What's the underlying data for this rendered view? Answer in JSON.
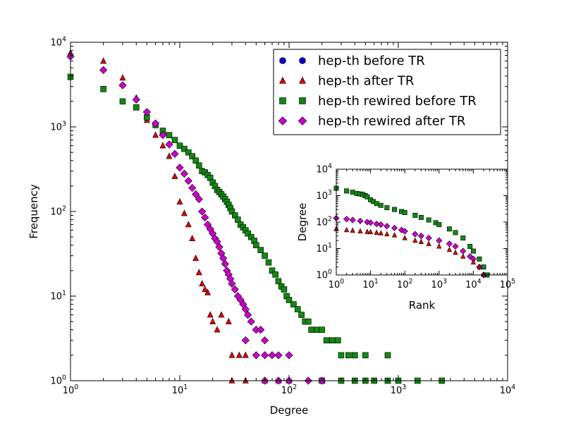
{
  "chart_data": [
    {
      "type": "scatter",
      "scale": "log-log",
      "xlabel": "Degree",
      "ylabel": "Frequency",
      "xlim": [
        1,
        10000
      ],
      "ylim": [
        1,
        10000
      ],
      "x_tick_labels": [
        {
          "base": "10",
          "exp": "0",
          "value": 1
        },
        {
          "base": "10",
          "exp": "1",
          "value": 10
        },
        {
          "base": "10",
          "exp": "2",
          "value": 100
        },
        {
          "base": "10",
          "exp": "3",
          "value": 1000
        },
        {
          "base": "10",
          "exp": "4",
          "value": 10000
        }
      ],
      "y_tick_labels": [
        {
          "base": "10",
          "exp": "0",
          "value": 1
        },
        {
          "base": "10",
          "exp": "1",
          "value": 10
        },
        {
          "base": "10",
          "exp": "2",
          "value": 100
        },
        {
          "base": "10",
          "exp": "3",
          "value": 1000
        },
        {
          "base": "10",
          "exp": "4",
          "value": 10000
        }
      ],
      "legend_position": "top-right",
      "series": [
        {
          "name": "hep-th before TR",
          "marker": "circle",
          "color": "#0000cc",
          "points": []
        },
        {
          "name": "hep-th after TR",
          "marker": "triangle",
          "color": "#dd0000",
          "points": [
            [
              1,
              7500
            ],
            [
              2,
              6000
            ],
            [
              3,
              3800
            ],
            [
              4,
              2200
            ],
            [
              5,
              1200
            ],
            [
              6,
              800
            ],
            [
              7,
              600
            ],
            [
              8,
              450
            ],
            [
              9,
              260
            ],
            [
              10,
              130
            ],
            [
              11,
              95
            ],
            [
              12,
              70
            ],
            [
              13,
              48
            ],
            [
              14,
              28
            ],
            [
              15,
              19
            ],
            [
              16,
              14
            ],
            [
              17,
              12
            ],
            [
              18,
              11
            ],
            [
              19,
              6
            ],
            [
              20,
              5
            ],
            [
              22,
              4
            ],
            [
              24,
              6
            ],
            [
              28,
              5
            ],
            [
              30,
              2
            ],
            [
              35,
              2
            ],
            [
              40,
              2
            ],
            [
              30,
              1
            ],
            [
              40,
              1
            ],
            [
              60,
              1
            ],
            [
              80,
              1
            ],
            [
              100,
              1
            ]
          ]
        },
        {
          "name": "hep-th rewired before TR",
          "marker": "square",
          "color": "#118811",
          "points": [
            [
              1,
              3900
            ],
            [
              2,
              2800
            ],
            [
              3,
              2000
            ],
            [
              4,
              1700
            ],
            [
              5,
              1300
            ],
            [
              6,
              1050
            ],
            [
              7,
              900
            ],
            [
              8,
              800
            ],
            [
              9,
              700
            ],
            [
              10,
              600
            ],
            [
              11,
              550
            ],
            [
              12,
              500
            ],
            [
              13,
              450
            ],
            [
              14,
              400
            ],
            [
              15,
              350
            ],
            [
              16,
              300
            ],
            [
              17,
              290
            ],
            [
              18,
              270
            ],
            [
              19,
              250
            ],
            [
              20,
              220
            ],
            [
              21,
              200
            ],
            [
              22,
              180
            ],
            [
              23,
              170
            ],
            [
              24,
              160
            ],
            [
              25,
              150
            ],
            [
              26,
              140
            ],
            [
              27,
              130
            ],
            [
              28,
              120
            ],
            [
              29,
              110
            ],
            [
              30,
              100
            ],
            [
              32,
              90
            ],
            [
              34,
              80
            ],
            [
              36,
              70
            ],
            [
              38,
              65
            ],
            [
              40,
              60
            ],
            [
              42,
              55
            ],
            [
              45,
              50
            ],
            [
              48,
              45
            ],
            [
              50,
              40
            ],
            [
              55,
              35
            ],
            [
              60,
              30
            ],
            [
              65,
              25
            ],
            [
              70,
              20
            ],
            [
              75,
              18
            ],
            [
              80,
              15
            ],
            [
              85,
              13
            ],
            [
              90,
              12
            ],
            [
              95,
              10
            ],
            [
              100,
              9
            ],
            [
              110,
              8
            ],
            [
              120,
              7
            ],
            [
              130,
              6
            ],
            [
              140,
              5
            ],
            [
              150,
              5
            ],
            [
              160,
              4
            ],
            [
              180,
              4
            ],
            [
              200,
              4
            ],
            [
              220,
              3
            ],
            [
              250,
              3
            ],
            [
              280,
              3
            ],
            [
              300,
              2
            ],
            [
              350,
              2
            ],
            [
              400,
              2
            ],
            [
              500,
              2
            ],
            [
              800,
              2
            ],
            [
              200,
              1
            ],
            [
              300,
              1
            ],
            [
              400,
              1
            ],
            [
              500,
              1
            ],
            [
              600,
              1
            ],
            [
              800,
              1
            ],
            [
              1000,
              1
            ],
            [
              1500,
              1
            ],
            [
              2500,
              1
            ]
          ]
        },
        {
          "name": "hep-th rewired after TR",
          "marker": "diamond",
          "color": "#cc00cc",
          "points": [
            [
              1,
              6800
            ],
            [
              2,
              4700
            ],
            [
              3,
              3100
            ],
            [
              4,
              2100
            ],
            [
              5,
              1500
            ],
            [
              6,
              1100
            ],
            [
              7,
              800
            ],
            [
              8,
              620
            ],
            [
              9,
              480
            ],
            [
              10,
              330
            ],
            [
              11,
              280
            ],
            [
              12,
              230
            ],
            [
              13,
              190
            ],
            [
              14,
              160
            ],
            [
              15,
              140
            ],
            [
              16,
              100
            ],
            [
              17,
              85
            ],
            [
              18,
              70
            ],
            [
              19,
              62
            ],
            [
              20,
              55
            ],
            [
              21,
              48
            ],
            [
              22,
              44
            ],
            [
              23,
              38
            ],
            [
              24,
              32
            ],
            [
              25,
              28
            ],
            [
              26,
              24
            ],
            [
              27,
              20
            ],
            [
              28,
              18
            ],
            [
              29,
              16
            ],
            [
              30,
              14
            ],
            [
              32,
              12
            ],
            [
              34,
              10
            ],
            [
              36,
              9
            ],
            [
              38,
              8
            ],
            [
              40,
              7
            ],
            [
              42,
              6
            ],
            [
              45,
              5
            ],
            [
              50,
              4
            ],
            [
              55,
              4
            ],
            [
              60,
              3
            ],
            [
              40,
              3
            ],
            [
              50,
              2
            ],
            [
              60,
              2
            ],
            [
              70,
              2
            ],
            [
              80,
              2
            ],
            [
              100,
              2
            ],
            [
              60,
              1
            ],
            [
              80,
              1
            ],
            [
              100,
              1
            ],
            [
              150,
              1
            ],
            [
              200,
              1
            ]
          ]
        }
      ]
    },
    {
      "type": "scatter",
      "scale": "log-log",
      "xlabel": "Rank",
      "ylabel": "Degree",
      "xlim": [
        1,
        100000
      ],
      "ylim": [
        1,
        10000
      ],
      "x_tick_labels": [
        {
          "base": "10",
          "exp": "0",
          "value": 1
        },
        {
          "base": "10",
          "exp": "1",
          "value": 10
        },
        {
          "base": "10",
          "exp": "2",
          "value": 100
        },
        {
          "base": "10",
          "exp": "3",
          "value": 1000
        },
        {
          "base": "10",
          "exp": "4",
          "value": 10000
        },
        {
          "base": "10",
          "exp": "5",
          "value": 100000
        }
      ],
      "y_tick_labels": [
        {
          "base": "10",
          "exp": "0",
          "value": 1
        },
        {
          "base": "10",
          "exp": "1",
          "value": 10
        },
        {
          "base": "10",
          "exp": "2",
          "value": 100
        },
        {
          "base": "10",
          "exp": "3",
          "value": 1000
        },
        {
          "base": "10",
          "exp": "4",
          "value": 10000
        }
      ],
      "series": [
        {
          "marker": "square",
          "color": "#118811",
          "points": [
            [
              1,
              1900
            ],
            [
              2,
              1500
            ],
            [
              3,
              1350
            ],
            [
              4,
              1200
            ],
            [
              5,
              1150
            ],
            [
              6,
              1100
            ],
            [
              7,
              1000
            ],
            [
              8,
              900
            ],
            [
              10,
              700
            ],
            [
              12,
              600
            ],
            [
              15,
              500
            ],
            [
              20,
              430
            ],
            [
              30,
              350
            ],
            [
              50,
              300
            ],
            [
              80,
              250
            ],
            [
              100,
              230
            ],
            [
              200,
              180
            ],
            [
              300,
              150
            ],
            [
              500,
              120
            ],
            [
              800,
              95
            ],
            [
              1000,
              80
            ],
            [
              2000,
              55
            ],
            [
              3000,
              40
            ],
            [
              5000,
              25
            ],
            [
              8000,
              12
            ],
            [
              10000,
              8
            ],
            [
              15000,
              4
            ],
            [
              20000,
              2
            ],
            [
              25000,
              1
            ]
          ]
        },
        {
          "marker": "diamond",
          "color": "#cc00cc",
          "points": [
            [
              1,
              140
            ],
            [
              2,
              130
            ],
            [
              3,
              120
            ],
            [
              5,
              110
            ],
            [
              8,
              100
            ],
            [
              10,
              95
            ],
            [
              15,
              85
            ],
            [
              20,
              80
            ],
            [
              30,
              70
            ],
            [
              50,
              60
            ],
            [
              80,
              50
            ],
            [
              100,
              45
            ],
            [
              200,
              35
            ],
            [
              300,
              30
            ],
            [
              500,
              25
            ],
            [
              1000,
              20
            ],
            [
              2000,
              15
            ],
            [
              3000,
              12
            ],
            [
              5000,
              8
            ],
            [
              8000,
              5
            ],
            [
              10000,
              4
            ],
            [
              15000,
              2
            ],
            [
              20000,
              1
            ]
          ]
        },
        {
          "marker": "triangle",
          "color": "#dd0000",
          "points": [
            [
              1,
              55
            ],
            [
              2,
              50
            ],
            [
              3,
              48
            ],
            [
              5,
              45
            ],
            [
              8,
              43
            ],
            [
              10,
              42
            ],
            [
              15,
              40
            ],
            [
              20,
              38
            ],
            [
              30,
              35
            ],
            [
              50,
              32
            ],
            [
              100,
              25
            ],
            [
              200,
              20
            ],
            [
              300,
              18
            ],
            [
              500,
              15
            ],
            [
              1000,
              12
            ],
            [
              2000,
              9
            ],
            [
              3000,
              7
            ],
            [
              5000,
              5
            ],
            [
              10000,
              3
            ],
            [
              15000,
              2
            ],
            [
              20000,
              1
            ]
          ]
        }
      ]
    }
  ]
}
